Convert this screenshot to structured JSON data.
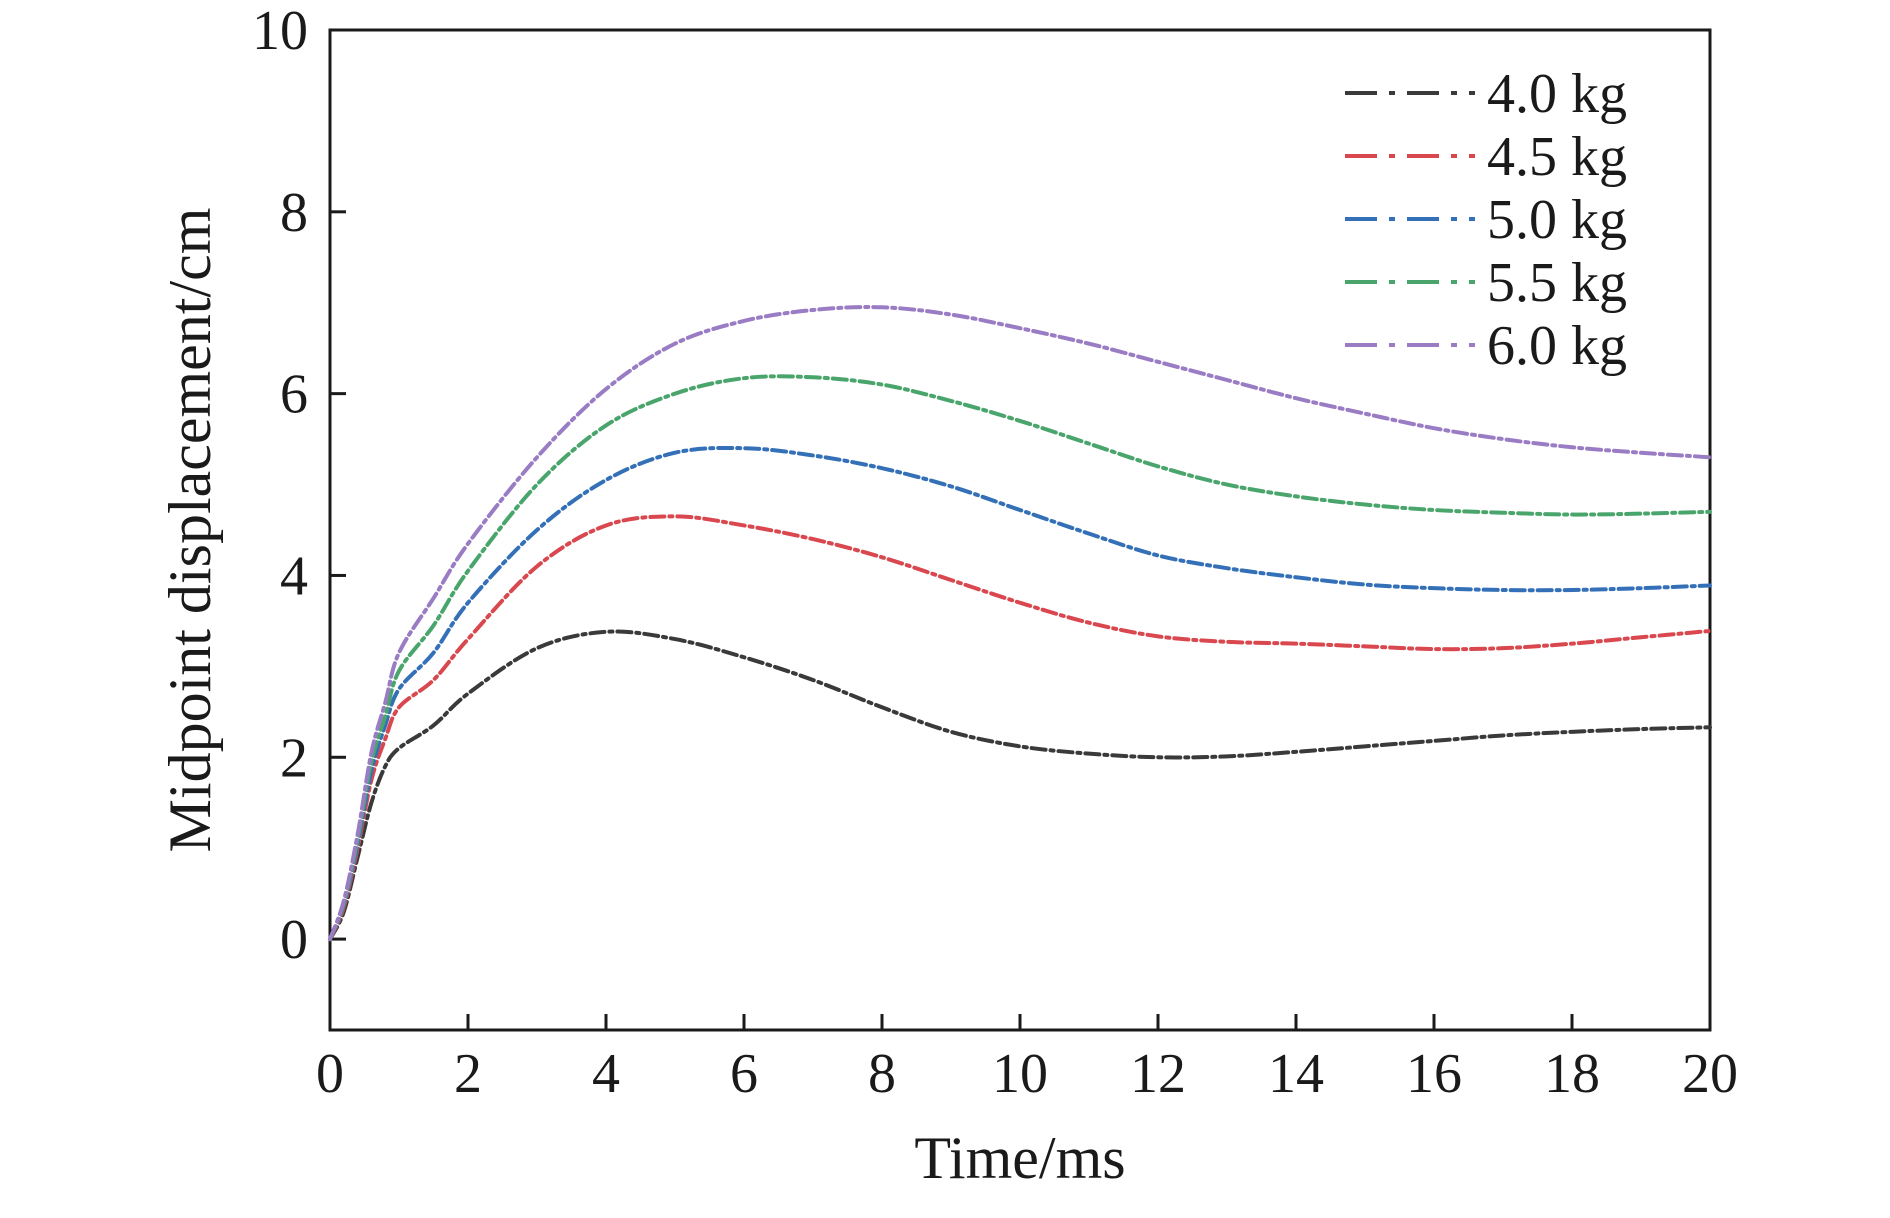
{
  "chart_data": {
    "type": "line",
    "title": "",
    "xlabel": "Time/ms",
    "ylabel": "Midpoint displacement/cm",
    "xlim": [
      0,
      20
    ],
    "ylim": [
      -1,
      10
    ],
    "xticks": [
      0,
      2,
      4,
      6,
      8,
      10,
      12,
      14,
      16,
      18,
      20
    ],
    "yticks": [
      0,
      2,
      4,
      6,
      8,
      10
    ],
    "grid": false,
    "legend_position": "top-right",
    "line_style": "dash-dot",
    "x": [
      0,
      0.2,
      0.4,
      0.6,
      0.8,
      1.0,
      1.5,
      2,
      3,
      4,
      5,
      6,
      7,
      8,
      9,
      10,
      11,
      12,
      13,
      14,
      15,
      16,
      17,
      18,
      19,
      20
    ],
    "series": [
      {
        "name": "4.0 kg",
        "color": "#3a3a3a",
        "values": [
          0,
          0.3,
          0.9,
          1.5,
          1.9,
          2.1,
          2.35,
          2.7,
          3.2,
          3.38,
          3.3,
          3.1,
          2.85,
          2.55,
          2.28,
          2.12,
          2.04,
          2.0,
          2.01,
          2.06,
          2.12,
          2.18,
          2.24,
          2.28,
          2.31,
          2.33
        ]
      },
      {
        "name": "4.5 kg",
        "color": "#d9474f",
        "values": [
          0,
          0.35,
          1.0,
          1.75,
          2.2,
          2.55,
          2.85,
          3.3,
          4.1,
          4.55,
          4.65,
          4.55,
          4.4,
          4.2,
          3.95,
          3.7,
          3.48,
          3.33,
          3.27,
          3.25,
          3.22,
          3.19,
          3.2,
          3.25,
          3.32,
          3.39
        ]
      },
      {
        "name": "5.0 kg",
        "color": "#3470b8",
        "values": [
          0,
          0.38,
          1.05,
          1.85,
          2.35,
          2.75,
          3.15,
          3.7,
          4.5,
          5.05,
          5.35,
          5.4,
          5.32,
          5.18,
          4.98,
          4.72,
          4.46,
          4.22,
          4.08,
          3.98,
          3.9,
          3.86,
          3.84,
          3.84,
          3.86,
          3.89
        ]
      },
      {
        "name": "5.5 kg",
        "color": "#4aa56c",
        "values": [
          0,
          0.4,
          1.1,
          1.95,
          2.45,
          2.95,
          3.45,
          4.05,
          5.0,
          5.65,
          6.0,
          6.17,
          6.18,
          6.1,
          5.92,
          5.7,
          5.45,
          5.2,
          5.0,
          4.87,
          4.78,
          4.72,
          4.69,
          4.67,
          4.68,
          4.7
        ]
      },
      {
        "name": "6.0 kg",
        "color": "#9a7cc4",
        "values": [
          0,
          0.42,
          1.15,
          2.05,
          2.6,
          3.15,
          3.75,
          4.35,
          5.3,
          6.05,
          6.55,
          6.8,
          6.92,
          6.95,
          6.87,
          6.72,
          6.55,
          6.35,
          6.15,
          5.95,
          5.78,
          5.62,
          5.5,
          5.41,
          5.35,
          5.3
        ]
      }
    ]
  }
}
